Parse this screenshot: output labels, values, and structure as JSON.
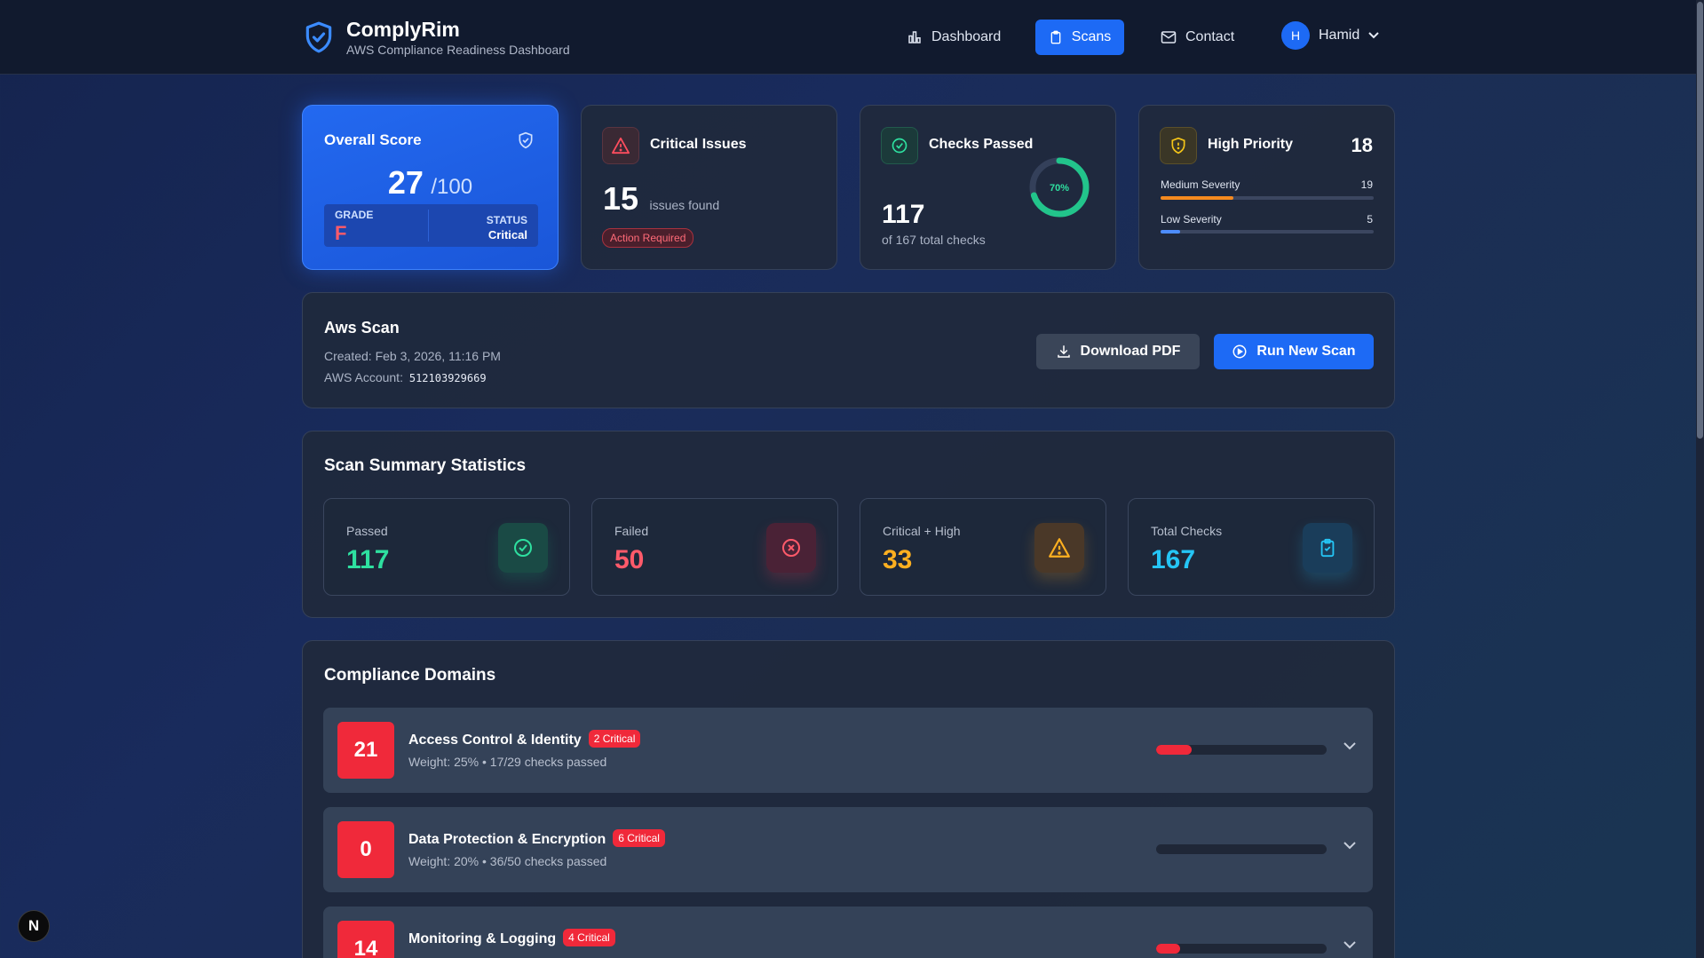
{
  "header": {
    "brand_name": "ComplyRim",
    "brand_sub": "AWS Compliance Readiness Dashboard",
    "nav": [
      {
        "label": "Dashboard",
        "icon": "bar-chart-icon",
        "active": false
      },
      {
        "label": "Scans",
        "icon": "clipboard-icon",
        "active": true
      },
      {
        "label": "Contact",
        "icon": "mail-icon",
        "active": false
      }
    ],
    "user": {
      "initial": "H",
      "name": "Hamid"
    }
  },
  "overall": {
    "title": "Overall Score",
    "score": "27",
    "out_of": "/100",
    "grade_label": "GRADE",
    "grade": "F",
    "status_label": "STATUS",
    "status": "Critical"
  },
  "critical": {
    "title": "Critical Issues",
    "count": "15",
    "suffix": "issues found",
    "badge": "Action Required"
  },
  "checks": {
    "title": "Checks Passed",
    "count": "117",
    "sub": "of 167 total checks",
    "percent_label": "70%",
    "percent": 70
  },
  "priority": {
    "title": "High Priority",
    "count": "18",
    "rows": [
      {
        "label": "Medium Severity",
        "value": "19",
        "fill": 0.34,
        "color": "#f58a1f"
      },
      {
        "label": "Low Severity",
        "value": "5",
        "fill": 0.09,
        "color": "#4d8dff"
      }
    ]
  },
  "scan": {
    "title": "Aws Scan",
    "created": "Created: Feb 3, 2026, 11:16 PM",
    "account_label": "AWS Account:",
    "account_id": "512103929669",
    "download_label": "Download PDF",
    "run_label": "Run New Scan"
  },
  "summary": {
    "title": "Scan Summary Statistics",
    "stats": [
      {
        "label": "Passed",
        "value": "117",
        "color": "#2ee0a0",
        "icon": "check-circle-icon"
      },
      {
        "label": "Failed",
        "value": "50",
        "color": "#ff5a6a",
        "icon": "x-circle-icon"
      },
      {
        "label": "Critical + High",
        "value": "33",
        "color": "#ffb020",
        "icon": "warning-icon"
      },
      {
        "label": "Total Checks",
        "value": "167",
        "color": "#25c5f5",
        "icon": "clipboard-check-icon"
      }
    ]
  },
  "domains": {
    "title": "Compliance Domains",
    "items": [
      {
        "score": "21",
        "name": "Access Control & Identity",
        "critical": "2 Critical",
        "sub": "Weight: 25% • 17/29 checks passed",
        "fill": 0.21
      },
      {
        "score": "0",
        "name": "Data Protection & Encryption",
        "critical": "6 Critical",
        "sub": "Weight: 20% • 36/50 checks passed",
        "fill": 0.0
      },
      {
        "score": "14",
        "name": "Monitoring & Logging",
        "critical": "4 Critical",
        "sub": "",
        "fill": 0.14
      }
    ]
  },
  "dev_badge": "N"
}
